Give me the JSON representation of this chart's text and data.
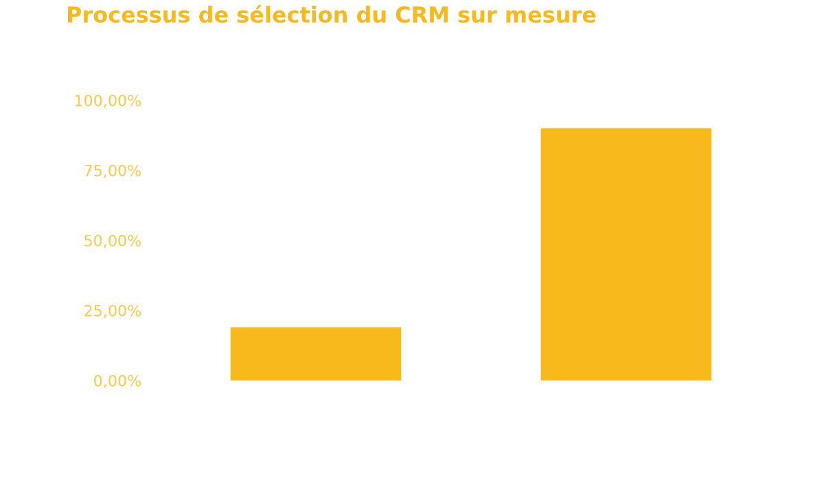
{
  "chart_data": {
    "type": "bar",
    "title": "Processus de sélection du CRM sur mesure",
    "categories": [
      null,
      null
    ],
    "values": [
      19,
      90
    ],
    "color": "#f7b91c",
    "ylim": [
      0,
      100
    ],
    "yticks": [
      {
        "value": 0,
        "label": "0,00%"
      },
      {
        "value": 25,
        "label": "25,00%"
      },
      {
        "value": 50,
        "label": "50,00%"
      },
      {
        "value": 75,
        "label": "75,00%"
      },
      {
        "value": 100,
        "label": "100,00%"
      }
    ],
    "tick_labels": "y",
    "grid": false
  }
}
